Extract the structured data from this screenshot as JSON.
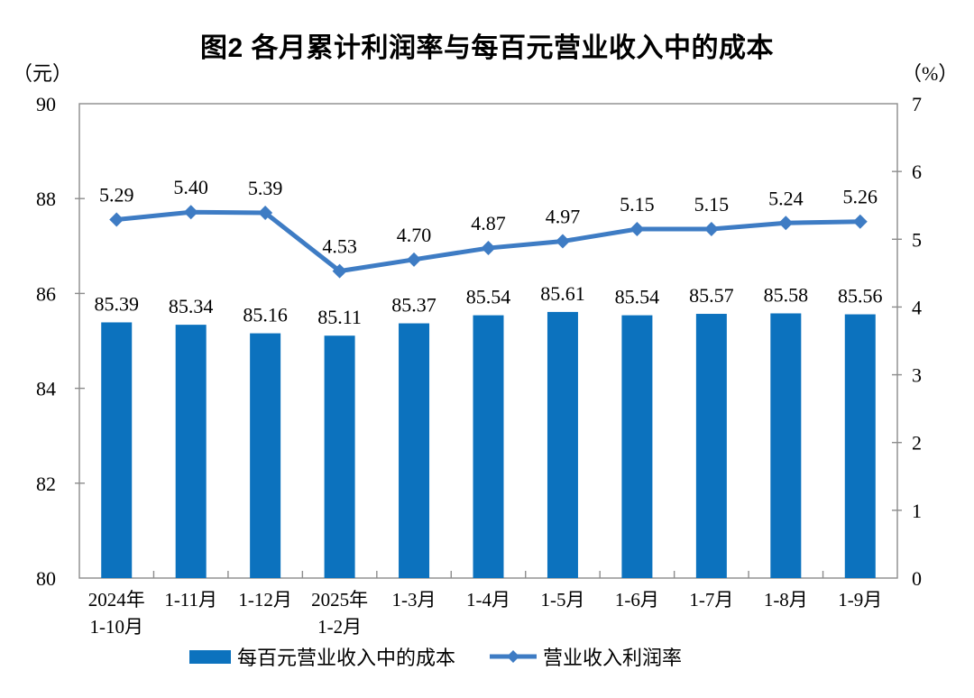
{
  "chart_data": {
    "type": "combo-bar-line",
    "title": "图2 各月累计利润率与每百元营业收入中的成本",
    "categories": [
      "2024年\n1-10月",
      "1-11月",
      "1-12月",
      "2025年\n1-2月",
      "1-3月",
      "1-4月",
      "1-5月",
      "1-6月",
      "1-7月",
      "1-8月",
      "1-9月"
    ],
    "series": [
      {
        "name": "每百元营业收入中的成本",
        "type": "bar",
        "axis": "left",
        "color": "#0C72BE",
        "values": [
          85.39,
          85.34,
          85.16,
          85.11,
          85.37,
          85.54,
          85.61,
          85.54,
          85.57,
          85.58,
          85.56
        ]
      },
      {
        "name": "营业收入利润率",
        "type": "line",
        "axis": "right",
        "color": "#3E7CC4",
        "values": [
          5.29,
          5.4,
          5.39,
          4.53,
          4.7,
          4.87,
          4.97,
          5.15,
          5.15,
          5.24,
          5.26
        ]
      }
    ],
    "left_axis": {
      "unit": "（元）",
      "min": 80,
      "max": 90,
      "tick_step": 2,
      "tick_labels": [
        "80",
        "82",
        "84",
        "86",
        "88",
        "90"
      ]
    },
    "right_axis": {
      "unit": "（%）",
      "min": 0,
      "max": 7,
      "tick_step": 1,
      "tick_labels": [
        "0",
        "1",
        "2",
        "3",
        "4",
        "5",
        "6",
        "7"
      ]
    },
    "grid": false,
    "data_labels": true,
    "legend_position": "bottom",
    "axis_color": "#8C8C8C",
    "label_decimals": 2
  }
}
